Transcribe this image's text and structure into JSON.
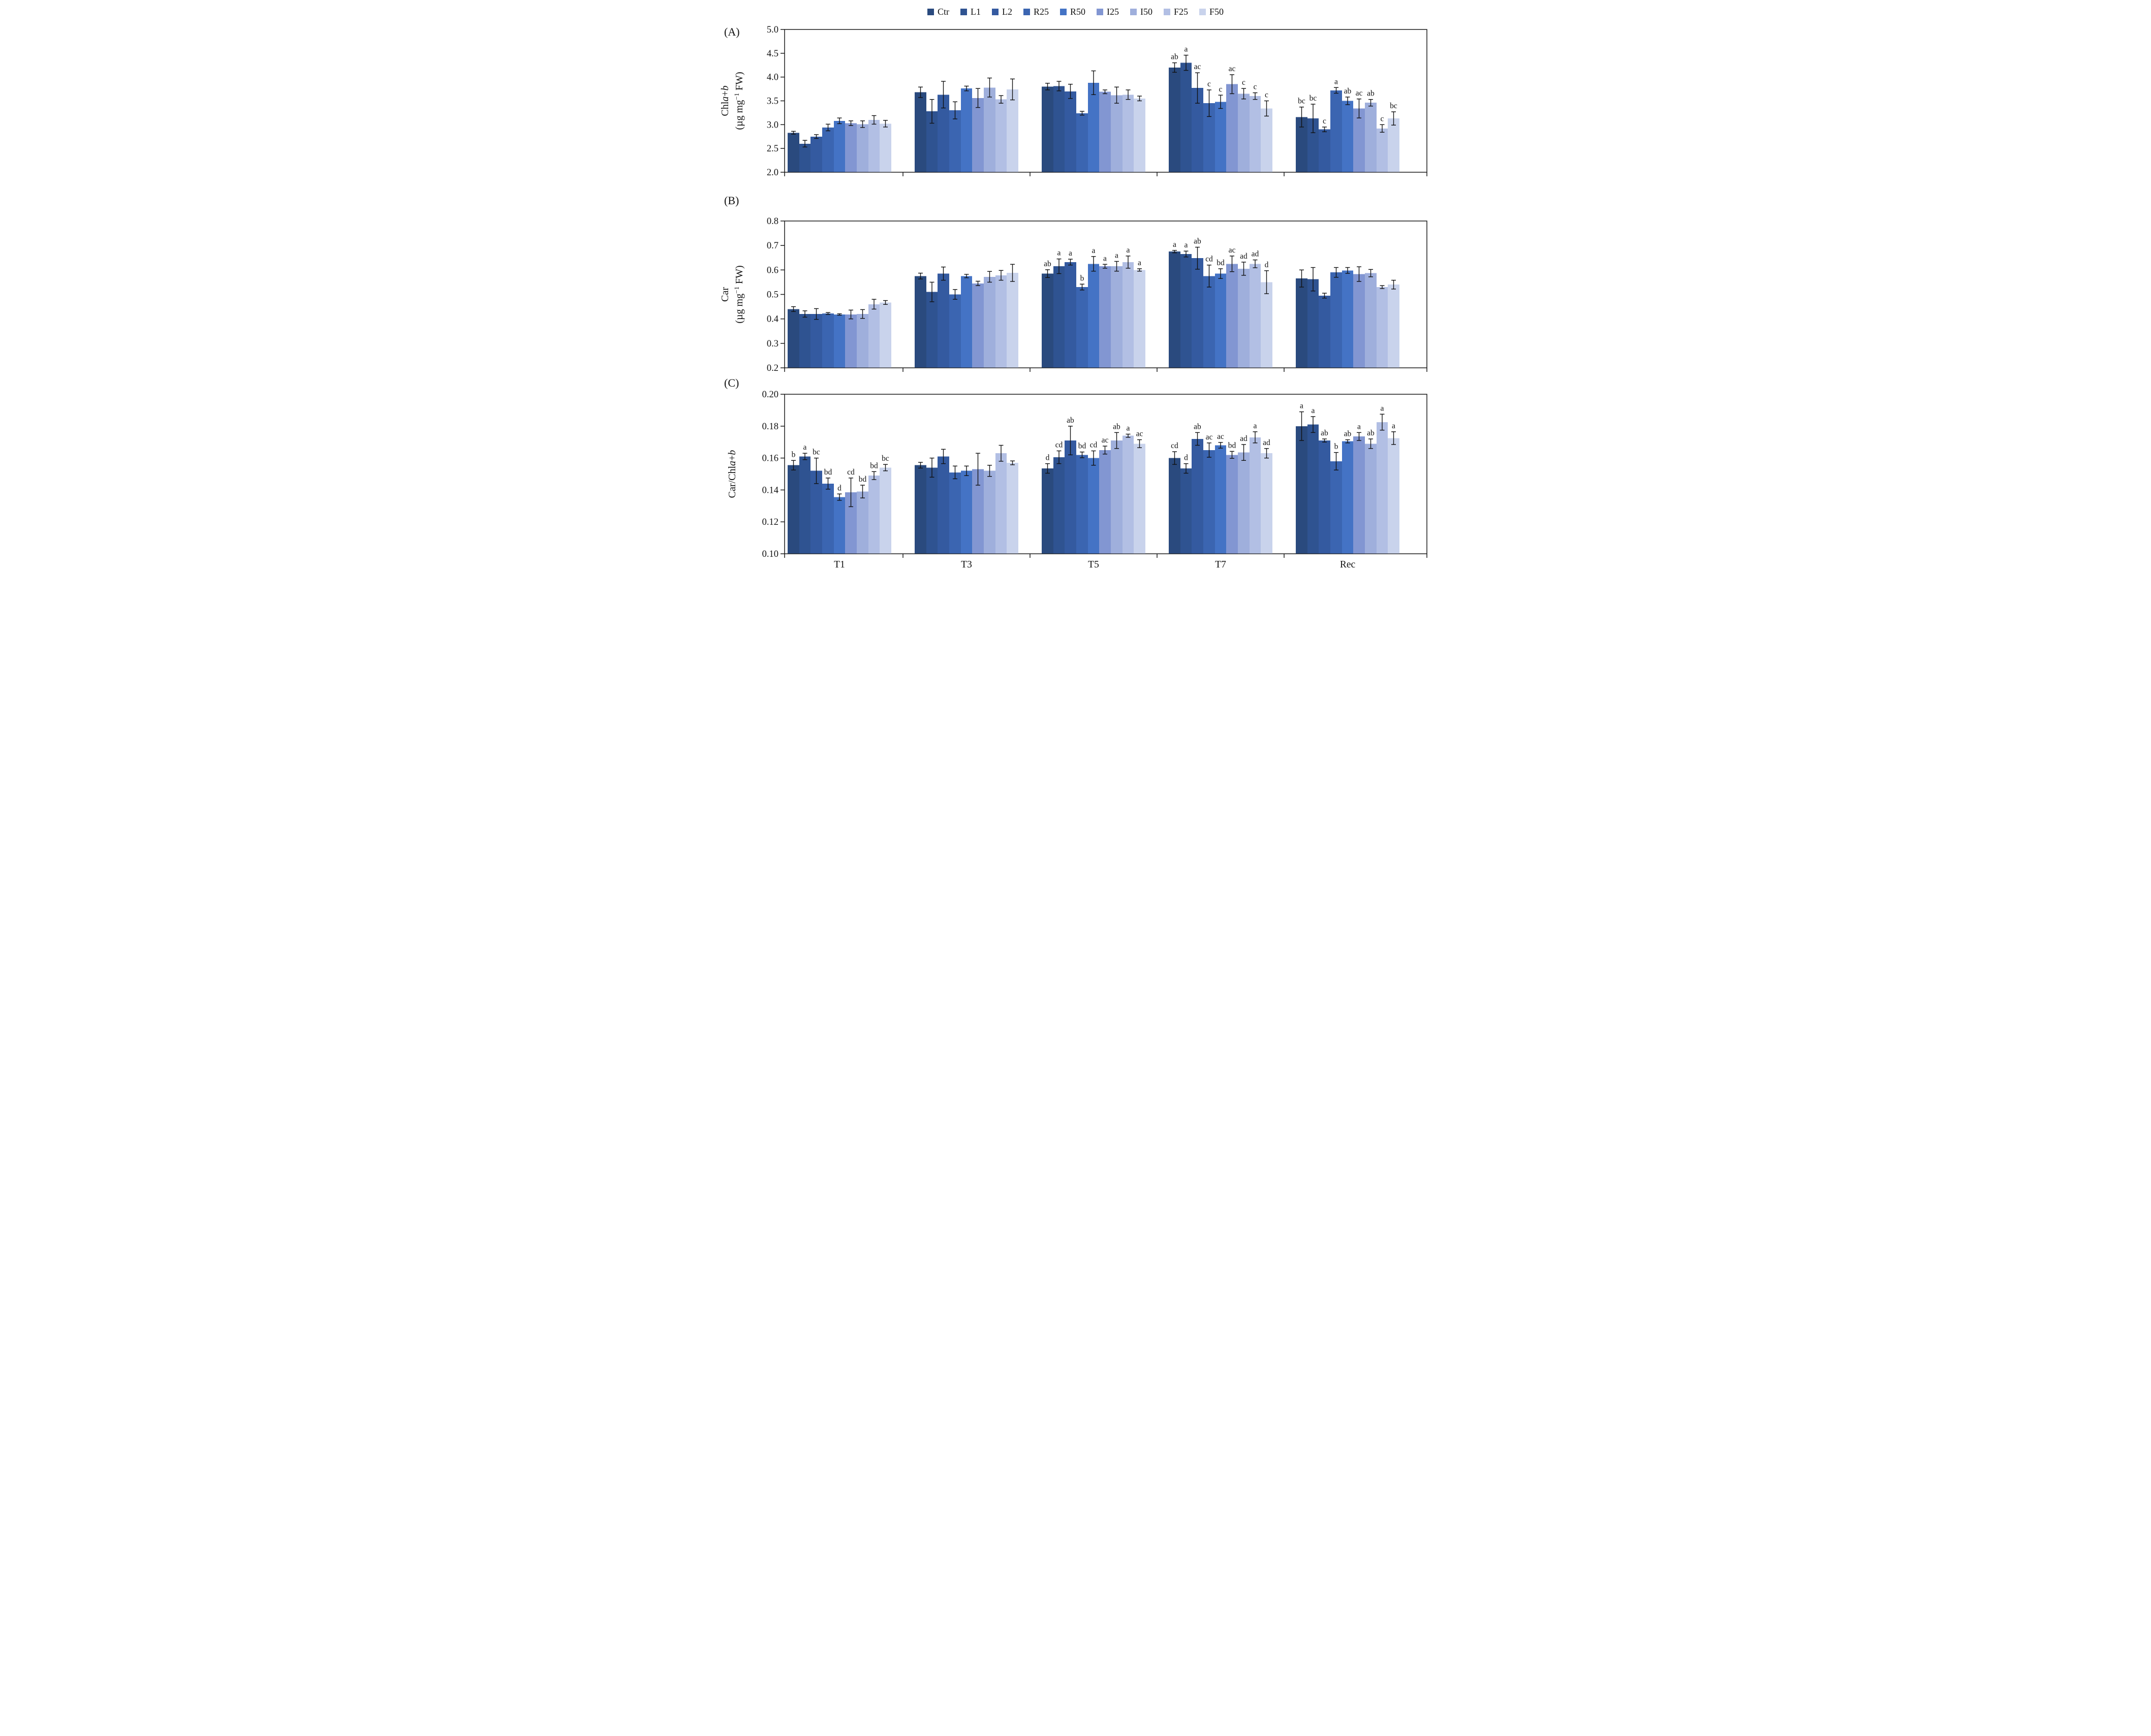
{
  "figure": {
    "panel_labels": [
      "(A)",
      "(B)",
      "(C)"
    ],
    "categories": [
      "T1",
      "T3",
      "T5",
      "T7",
      "Rec"
    ],
    "series_names": [
      "Ctr",
      "L1",
      "L2",
      "R25",
      "R50",
      "I25",
      "I50",
      "F25",
      "F50"
    ]
  },
  "legend": {
    "items": [
      {
        "label": "Ctr",
        "color": "#2A4A7E"
      },
      {
        "label": "L1",
        "color": "#2F5391"
      },
      {
        "label": "L2",
        "color": "#345AA0"
      },
      {
        "label": "R25",
        "color": "#3B65B1"
      },
      {
        "label": "R50",
        "color": "#4473C5"
      },
      {
        "label": "I25",
        "color": "#8296D2"
      },
      {
        "label": "I50",
        "color": "#9FAFDC"
      },
      {
        "label": "F25",
        "color": "#B2BFE4"
      },
      {
        "label": "F50",
        "color": "#C9D3EC"
      }
    ]
  },
  "chart_data": [
    {
      "type": "bar",
      "panel_label": "(A)",
      "ylabel_main_parts": [
        {
          "t": "Chl"
        },
        {
          "t": "a",
          "italic": true
        },
        {
          "t": "+"
        },
        {
          "t": "b",
          "italic": true
        }
      ],
      "ylabel_unit_parts": [
        {
          "t": "(µg mg"
        },
        {
          "t": "−1",
          "sup": true
        },
        {
          "t": " FW)"
        }
      ],
      "ylim": [
        2.0,
        5.0
      ],
      "ytick_labels": [
        "5.0",
        "4.5",
        "4.0",
        "3.5",
        "3.0",
        "2.5",
        "2.0"
      ],
      "legend_position": "top-center",
      "grid": false,
      "categories": [
        "T1",
        "T3",
        "T5",
        "T7",
        "Rec"
      ],
      "series": [
        "Ctr",
        "L1",
        "L2",
        "R25",
        "R50",
        "I25",
        "I50",
        "F25",
        "F50"
      ],
      "groups": [
        {
          "category": "T1",
          "values": [
            2.83,
            2.6,
            2.75,
            2.94,
            3.08,
            3.03,
            3.01,
            3.1,
            3.02
          ],
          "errors": [
            0.03,
            0.07,
            0.04,
            0.07,
            0.06,
            0.05,
            0.07,
            0.09,
            0.07
          ],
          "letters": [
            "",
            "",
            "",
            "",
            "",
            "",
            "",
            "",
            ""
          ]
        },
        {
          "category": "T3",
          "values": [
            3.68,
            3.28,
            3.63,
            3.3,
            3.76,
            3.56,
            3.78,
            3.53,
            3.74
          ],
          "errors": [
            0.11,
            0.25,
            0.28,
            0.18,
            0.05,
            0.2,
            0.2,
            0.08,
            0.22
          ],
          "letters": [
            "",
            "",
            "",
            "",
            "",
            "",
            "",
            "",
            ""
          ]
        },
        {
          "category": "T5",
          "values": [
            3.8,
            3.81,
            3.7,
            3.24,
            3.88,
            3.69,
            3.62,
            3.63,
            3.55
          ],
          "errors": [
            0.07,
            0.1,
            0.15,
            0.04,
            0.25,
            0.04,
            0.17,
            0.1,
            0.05
          ],
          "letters": [
            "",
            "",
            "",
            "",
            "",
            "",
            "",
            "",
            ""
          ]
        },
        {
          "category": "T7",
          "values": [
            4.2,
            4.3,
            3.77,
            3.45,
            3.48,
            3.85,
            3.65,
            3.6,
            3.34
          ],
          "errors": [
            0.1,
            0.16,
            0.32,
            0.28,
            0.14,
            0.2,
            0.11,
            0.07,
            0.16
          ],
          "letters": [
            "ab",
            "a",
            "ac",
            "c",
            "c",
            "ac",
            "c",
            "c",
            "c"
          ]
        },
        {
          "category": "Rec",
          "values": [
            3.16,
            3.13,
            2.9,
            3.72,
            3.5,
            3.34,
            3.46,
            2.92,
            3.13
          ],
          "errors": [
            0.21,
            0.3,
            0.05,
            0.06,
            0.08,
            0.2,
            0.07,
            0.08,
            0.14
          ],
          "letters": [
            "bc",
            "bc",
            "c",
            "a",
            "ab",
            "ac",
            "ab",
            "c",
            "bc"
          ]
        }
      ]
    },
    {
      "type": "bar",
      "panel_label": "(B)",
      "ylabel_main_parts": [
        {
          "t": "Car"
        }
      ],
      "ylabel_unit_parts": [
        {
          "t": "(µg mg"
        },
        {
          "t": "−1",
          "sup": true
        },
        {
          "t": " FW)"
        }
      ],
      "ylim": [
        0.2,
        0.8
      ],
      "ytick_labels": [
        "0.8",
        "0.7",
        "0.6",
        "0.5",
        "0.4",
        "0.3",
        "0.2"
      ],
      "grid": false,
      "categories": [
        "T1",
        "T3",
        "T5",
        "T7",
        "Rec"
      ],
      "series": [
        "Ctr",
        "L1",
        "L2",
        "R25",
        "R50",
        "I25",
        "I50",
        "F25",
        "F50"
      ],
      "groups": [
        {
          "category": "T1",
          "values": [
            0.44,
            0.42,
            0.42,
            0.422,
            0.418,
            0.418,
            0.42,
            0.46,
            0.467
          ],
          "errors": [
            0.01,
            0.013,
            0.022,
            0.004,
            0.003,
            0.018,
            0.018,
            0.02,
            0.008
          ],
          "letters": [
            "",
            "",
            "",
            "",
            "",
            "",
            "",
            "",
            ""
          ]
        },
        {
          "category": "T3",
          "values": [
            0.575,
            0.51,
            0.585,
            0.5,
            0.575,
            0.545,
            0.572,
            0.578,
            0.588
          ],
          "errors": [
            0.012,
            0.04,
            0.027,
            0.02,
            0.007,
            0.009,
            0.022,
            0.02,
            0.035
          ],
          "letters": [
            "",
            "",
            "",
            "",
            "",
            "",
            "",
            "",
            ""
          ]
        },
        {
          "category": "T5",
          "values": [
            0.585,
            0.615,
            0.632,
            0.53,
            0.625,
            0.615,
            0.615,
            0.632,
            0.6
          ],
          "errors": [
            0.016,
            0.03,
            0.012,
            0.012,
            0.03,
            0.008,
            0.02,
            0.025,
            0.005
          ],
          "letters": [
            "ab",
            "a",
            "a",
            "b",
            "a",
            "a",
            "a",
            "a",
            "a"
          ]
        },
        {
          "category": "T7",
          "values": [
            0.675,
            0.665,
            0.648,
            0.575,
            0.585,
            0.625,
            0.605,
            0.625,
            0.55
          ],
          "errors": [
            0.005,
            0.012,
            0.045,
            0.045,
            0.02,
            0.032,
            0.027,
            0.016,
            0.047
          ],
          "letters": [
            "a",
            "a",
            "ab",
            "cd",
            "bd",
            "ac",
            "ad",
            "ad",
            "d"
          ]
        },
        {
          "category": "Rec",
          "values": [
            0.565,
            0.562,
            0.495,
            0.59,
            0.598,
            0.583,
            0.587,
            0.53,
            0.54
          ],
          "errors": [
            0.035,
            0.048,
            0.01,
            0.02,
            0.012,
            0.03,
            0.015,
            0.006,
            0.018
          ],
          "letters": [
            "",
            "",
            "",
            "",
            "",
            "",
            "",
            "",
            ""
          ]
        }
      ]
    },
    {
      "type": "bar",
      "panel_label": "(C)",
      "ylabel_main_parts": [
        {
          "t": "Car/Chl"
        },
        {
          "t": "a",
          "italic": true
        },
        {
          "t": "+"
        },
        {
          "t": "b",
          "italic": true
        }
      ],
      "ylabel_unit_parts": [],
      "ylim": [
        0.1,
        0.2
      ],
      "ytick_labels": [
        "0.20",
        "0.18",
        "0.16",
        "0.14",
        "0.12",
        "0.10"
      ],
      "grid": false,
      "show_x_labels": true,
      "categories": [
        "T1",
        "T3",
        "T5",
        "T7",
        "Rec"
      ],
      "series": [
        "Ctr",
        "L1",
        "L2",
        "R25",
        "R50",
        "I25",
        "I50",
        "F25",
        "F50"
      ],
      "groups": [
        {
          "category": "T1",
          "values": [
            0.1555,
            0.161,
            0.152,
            0.144,
            0.1355,
            0.1385,
            0.139,
            0.149,
            0.154
          ],
          "errors": [
            0.003,
            0.002,
            0.008,
            0.0035,
            0.002,
            0.009,
            0.004,
            0.0025,
            0.002
          ],
          "letters": [
            "b",
            "a",
            "bc",
            "bd",
            "d",
            "cd",
            "bd",
            "bd",
            "bc"
          ]
        },
        {
          "category": "T3",
          "values": [
            0.1555,
            0.154,
            0.161,
            0.151,
            0.152,
            0.153,
            0.152,
            0.163,
            0.157
          ],
          "errors": [
            0.0018,
            0.006,
            0.0045,
            0.004,
            0.003,
            0.01,
            0.0035,
            0.005,
            0.0012
          ],
          "letters": [
            "",
            "",
            "",
            "",
            "",
            "",
            "",
            "",
            ""
          ]
        },
        {
          "category": "T5",
          "values": [
            0.1535,
            0.1605,
            0.171,
            0.162,
            0.16,
            0.165,
            0.171,
            0.174,
            0.169
          ],
          "errors": [
            0.003,
            0.004,
            0.009,
            0.0018,
            0.0045,
            0.0025,
            0.005,
            0.001,
            0.0025
          ],
          "letters": [
            "d",
            "cd",
            "ab",
            "bd",
            "cd",
            "ac",
            "ab",
            "a",
            "ac"
          ]
        },
        {
          "category": "T7",
          "values": [
            0.16,
            0.1535,
            0.172,
            0.165,
            0.168,
            0.162,
            0.1635,
            0.173,
            0.163
          ],
          "errors": [
            0.004,
            0.003,
            0.004,
            0.0045,
            0.0018,
            0.0022,
            0.005,
            0.0035,
            0.003
          ],
          "letters": [
            "cd",
            "d",
            "ab",
            "ac",
            "ac",
            "bd",
            "ad",
            "a",
            "ad"
          ]
        },
        {
          "category": "Rec",
          "values": [
            0.18,
            0.181,
            0.171,
            0.158,
            0.1705,
            0.1735,
            0.169,
            0.1825,
            0.1725
          ],
          "errors": [
            0.009,
            0.005,
            0.001,
            0.0055,
            0.001,
            0.0025,
            0.003,
            0.005,
            0.004
          ],
          "letters": [
            "a",
            "a",
            "ab",
            "b",
            "ab",
            "a",
            "ab",
            "a",
            "a"
          ]
        }
      ]
    }
  ]
}
